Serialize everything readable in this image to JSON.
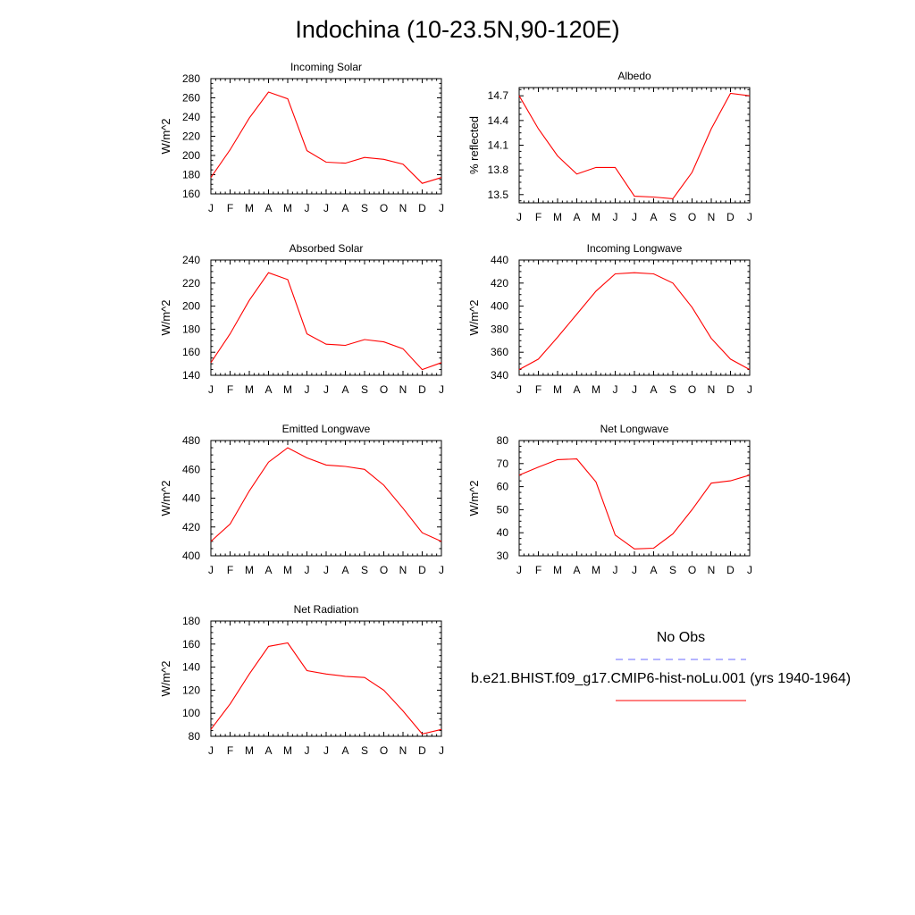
{
  "title": "Indochina (10-23.5N,90-120E)",
  "legend": {
    "items": [
      {
        "label": "No Obs",
        "color": "#6a6aff",
        "dash": true
      },
      {
        "label": "b.e21.BHIST.f09_g17.CMIP6-hist-noLu.001 (yrs 1940-1964)",
        "color": "#ff0000",
        "dash": false
      }
    ]
  },
  "chart_data": [
    {
      "type": "line",
      "title": "Incoming Solar",
      "ylabel": "W/m^2",
      "xlabel": "",
      "categories": [
        "J",
        "F",
        "M",
        "A",
        "M",
        "J",
        "J",
        "A",
        "S",
        "O",
        "N",
        "D",
        "J"
      ],
      "ylim": [
        160,
        280
      ],
      "yticks": [
        160,
        180,
        200,
        220,
        240,
        260,
        280
      ],
      "series": [
        {
          "values": [
            177,
            206,
            239,
            266,
            259,
            205,
            193,
            192,
            198,
            196,
            191,
            171,
            177
          ],
          "color": "#ff0000"
        }
      ]
    },
    {
      "type": "line",
      "title": "Albedo",
      "ylabel": "% reflected",
      "xlabel": "",
      "categories": [
        "J",
        "F",
        "M",
        "A",
        "M",
        "J",
        "J",
        "A",
        "S",
        "O",
        "N",
        "D",
        "J"
      ],
      "ylim": [
        13.4,
        14.8
      ],
      "yticks": [
        13.5,
        13.8,
        14.1,
        14.4,
        14.7
      ],
      "series": [
        {
          "values": [
            14.7,
            14.3,
            13.97,
            13.75,
            13.83,
            13.83,
            13.48,
            13.47,
            13.45,
            13.77,
            14.3,
            14.73,
            14.7
          ],
          "color": "#ff0000"
        }
      ]
    },
    {
      "type": "line",
      "title": "Absorbed Solar",
      "ylabel": "W/m^2",
      "xlabel": "",
      "categories": [
        "J",
        "F",
        "M",
        "A",
        "M",
        "J",
        "J",
        "A",
        "S",
        "O",
        "N",
        "D",
        "J"
      ],
      "ylim": [
        140,
        240
      ],
      "yticks": [
        140,
        160,
        180,
        200,
        220,
        240
      ],
      "series": [
        {
          "values": [
            151,
            176,
            205,
            229,
            223,
            176,
            167,
            166,
            171,
            169,
            163,
            145,
            151
          ],
          "color": "#ff0000"
        }
      ]
    },
    {
      "type": "line",
      "title": "Incoming Longwave",
      "ylabel": "W/m^2",
      "xlabel": "",
      "categories": [
        "J",
        "F",
        "M",
        "A",
        "M",
        "J",
        "J",
        "A",
        "S",
        "O",
        "N",
        "D",
        "J"
      ],
      "ylim": [
        340,
        440
      ],
      "yticks": [
        340,
        360,
        380,
        400,
        420,
        440
      ],
      "series": [
        {
          "values": [
            345,
            354,
            373,
            393,
            413,
            428,
            429,
            428,
            420,
            399,
            372,
            354,
            345
          ],
          "color": "#ff0000"
        }
      ]
    },
    {
      "type": "line",
      "title": "Emitted Longwave",
      "ylabel": "W/m^2",
      "xlabel": "",
      "categories": [
        "J",
        "F",
        "M",
        "A",
        "M",
        "J",
        "J",
        "A",
        "S",
        "O",
        "N",
        "D",
        "J"
      ],
      "ylim": [
        400,
        480
      ],
      "yticks": [
        400,
        420,
        440,
        460,
        480
      ],
      "series": [
        {
          "values": [
            410,
            422,
            445,
            465,
            475,
            468,
            463,
            462,
            460,
            449,
            433,
            416,
            410
          ],
          "color": "#ff0000"
        }
      ]
    },
    {
      "type": "line",
      "title": "Net Longwave",
      "ylabel": "W/m^2",
      "xlabel": "",
      "categories": [
        "J",
        "F",
        "M",
        "A",
        "M",
        "J",
        "J",
        "A",
        "S",
        "O",
        "N",
        "D",
        "J"
      ],
      "ylim": [
        30,
        80
      ],
      "yticks": [
        30,
        40,
        50,
        60,
        70,
        80
      ],
      "series": [
        {
          "values": [
            65,
            68.5,
            71.7,
            72,
            62,
            39,
            33,
            33.3,
            39.5,
            50,
            61.5,
            62.5,
            65
          ],
          "color": "#ff0000"
        }
      ]
    },
    {
      "type": "line",
      "title": "Net Radiation",
      "ylabel": "W/m^2",
      "xlabel": "",
      "categories": [
        "J",
        "F",
        "M",
        "A",
        "M",
        "J",
        "J",
        "A",
        "S",
        "O",
        "N",
        "D",
        "J"
      ],
      "ylim": [
        80,
        180
      ],
      "yticks": [
        80,
        100,
        120,
        140,
        160,
        180
      ],
      "series": [
        {
          "values": [
            86,
            108,
            134,
            158,
            161,
            137,
            134,
            132,
            131,
            120,
            102,
            82,
            86
          ],
          "color": "#ff0000"
        }
      ]
    }
  ]
}
